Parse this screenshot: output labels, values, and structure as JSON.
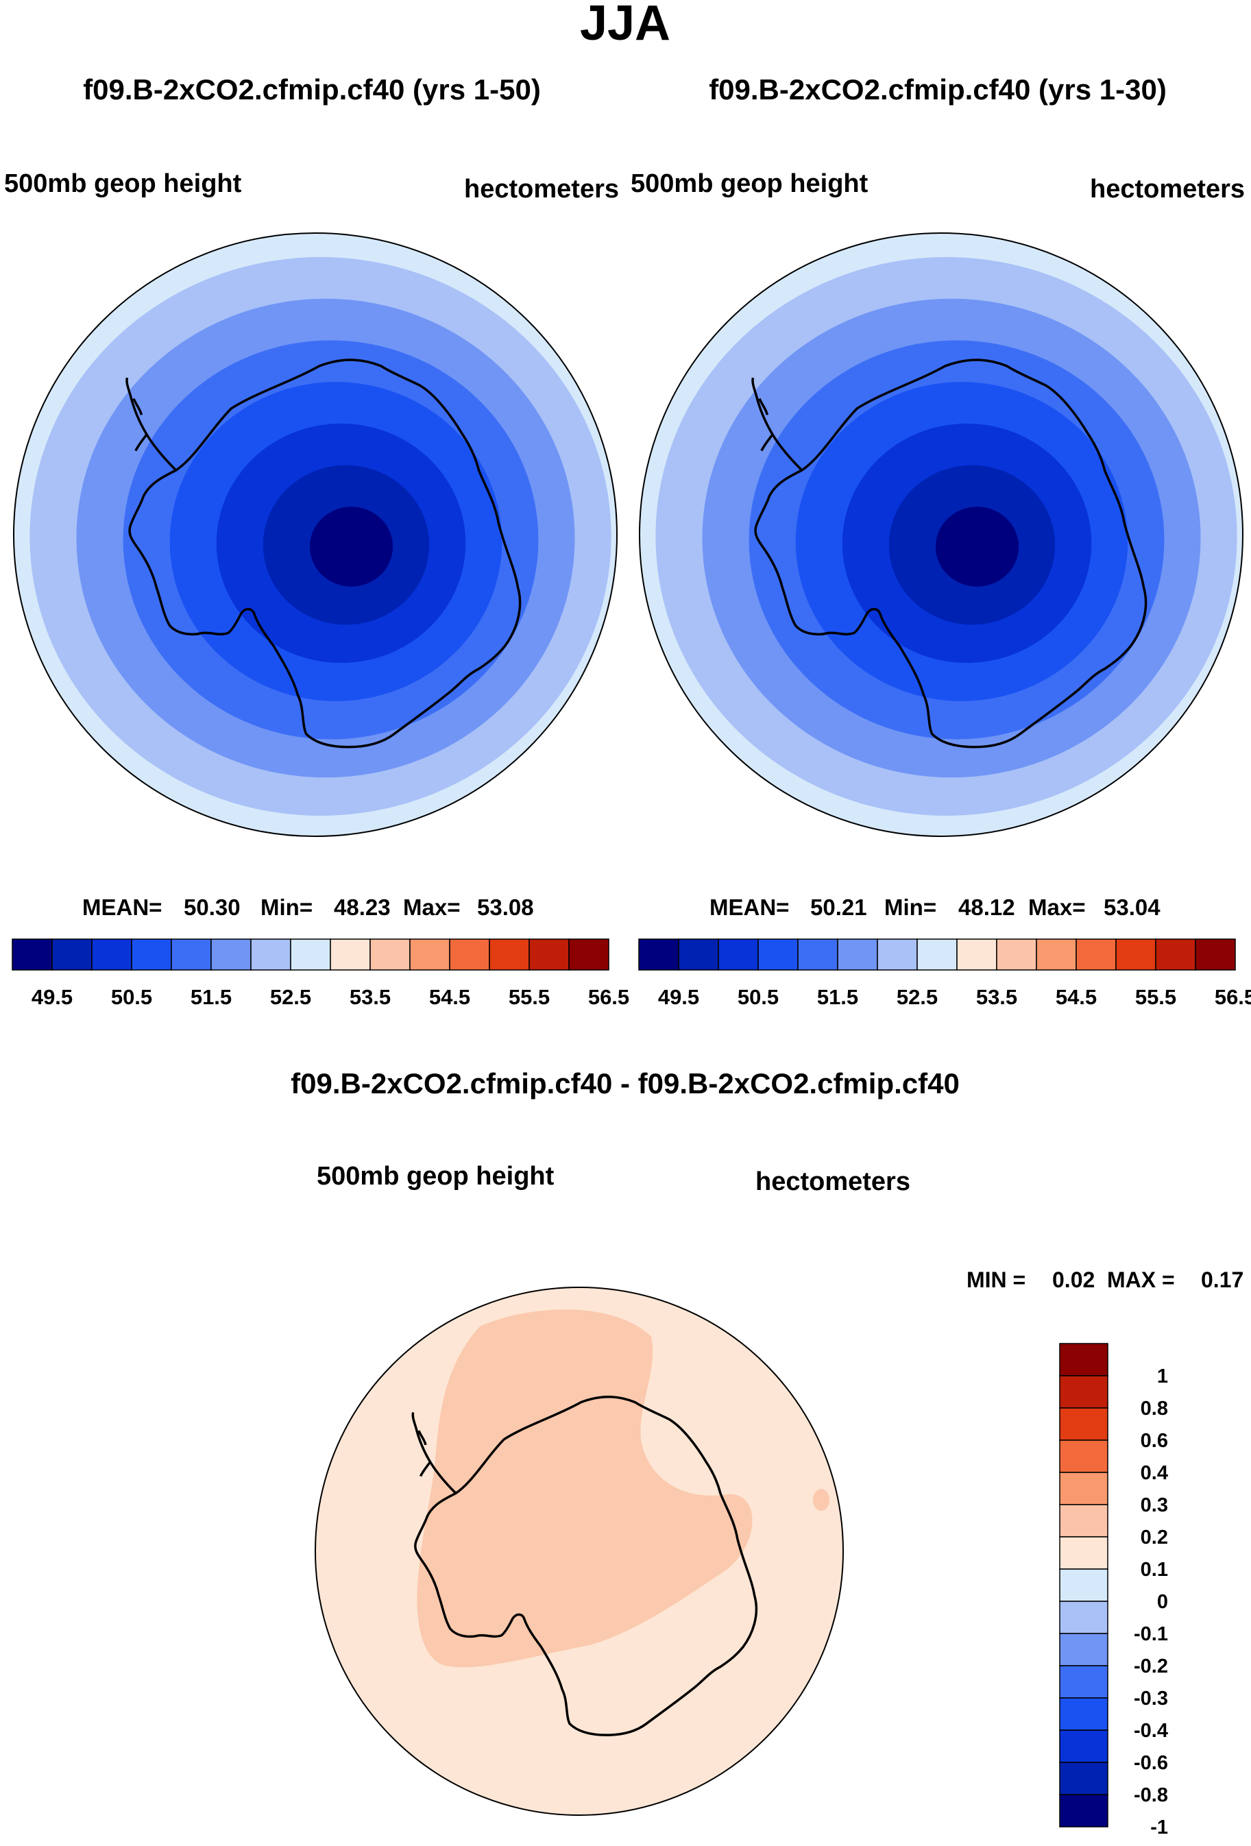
{
  "page_title": "JJA",
  "colors": {
    "ocean_outline": "#000000",
    "coast": "#000000",
    "background": "#ffffff"
  },
  "panels": [
    {
      "id": "panel-1",
      "title": "f09.B-2xCO2.cfmip.cf40 (yrs 1-50)",
      "left_label": "500mb geop height",
      "right_label": "hectometers",
      "stats": {
        "mean_label": "MEAN=",
        "mean": "50.30",
        "min_label": "Min=",
        "min": "48.23",
        "max_label": "Max=",
        "max": "53.08"
      },
      "field_levels": [
        {
          "level": "< 49.5",
          "color": "#00007f"
        },
        {
          "level": "49.5-50",
          "color": "#0022b2"
        },
        {
          "level": "50-50.5",
          "color": "#0733d9"
        },
        {
          "level": "50.5-51",
          "color": "#1a52f2"
        },
        {
          "level": "51-51.5",
          "color": "#3c6ef5"
        },
        {
          "level": "51.5-52",
          "color": "#7095f5"
        },
        {
          "level": "52-52.5",
          "color": "#a9c1f7"
        },
        {
          "level": "52.5-53",
          "color": "#d6e9fb"
        }
      ]
    },
    {
      "id": "panel-2",
      "title": "f09.B-2xCO2.cfmip.cf40 (yrs 1-30)",
      "left_label": "500mb geop height",
      "right_label": "hectometers",
      "stats": {
        "mean_label": "MEAN=",
        "mean": "50.21",
        "min_label": "Min=",
        "min": "48.12",
        "max_label": "Max=",
        "max": "53.04"
      },
      "field_levels": [
        {
          "level": "< 49.5",
          "color": "#00007f"
        },
        {
          "level": "49.5-50",
          "color": "#0022b2"
        },
        {
          "level": "50-50.5",
          "color": "#0733d9"
        },
        {
          "level": "50.5-51",
          "color": "#1a52f2"
        },
        {
          "level": "51-51.5",
          "color": "#3c6ef5"
        },
        {
          "level": "51.5-52",
          "color": "#7095f5"
        },
        {
          "level": "52-52.5",
          "color": "#a9c1f7"
        },
        {
          "level": "52.5-53",
          "color": "#d6e9fb"
        }
      ]
    }
  ],
  "horizontal_colorbar": {
    "colors": [
      "#00007f",
      "#0022b2",
      "#0733d9",
      "#1a52f2",
      "#3c6ef5",
      "#7095f5",
      "#a9c1f7",
      "#d6e9fb",
      "#fde6d5",
      "#fbc3a8",
      "#f99a6e",
      "#f26a3b",
      "#e23c12",
      "#c01e08",
      "#8b0000"
    ],
    "tick_labels": [
      "49.5",
      "50.5",
      "51.5",
      "52.5",
      "53.5",
      "54.5",
      "55.5",
      "56.5"
    ]
  },
  "difference_panel": {
    "title": "f09.B-2xCO2.cfmip.cf40 - f09.B-2xCO2.cfmip.cf40",
    "left_label": "500mb geop height",
    "right_label": "hectometers",
    "stats": {
      "min_label": "MIN =",
      "min": "0.02",
      "max_label": "MAX =",
      "max": "0.17"
    },
    "field_levels": [
      {
        "level": "0-0.1",
        "color": "#fde6d5"
      },
      {
        "level": "0.1-0.2",
        "color": "#fbc9ad"
      }
    ],
    "colorbar": {
      "colors": [
        "#8b0000",
        "#c01e08",
        "#e23c12",
        "#f26a3b",
        "#f99a6e",
        "#fbc3a8",
        "#fde6d5",
        "#d6e9fb",
        "#a9c1f7",
        "#7095f5",
        "#3c6ef5",
        "#1a52f2",
        "#0733d9",
        "#0022b2",
        "#00007f"
      ],
      "tick_labels": [
        "1",
        "0.8",
        "0.6",
        "0.4",
        "0.3",
        "0.2",
        "0.1",
        "0",
        "-0.1",
        "-0.2",
        "-0.3",
        "-0.4",
        "-0.6",
        "-0.8",
        "-1"
      ]
    }
  }
}
